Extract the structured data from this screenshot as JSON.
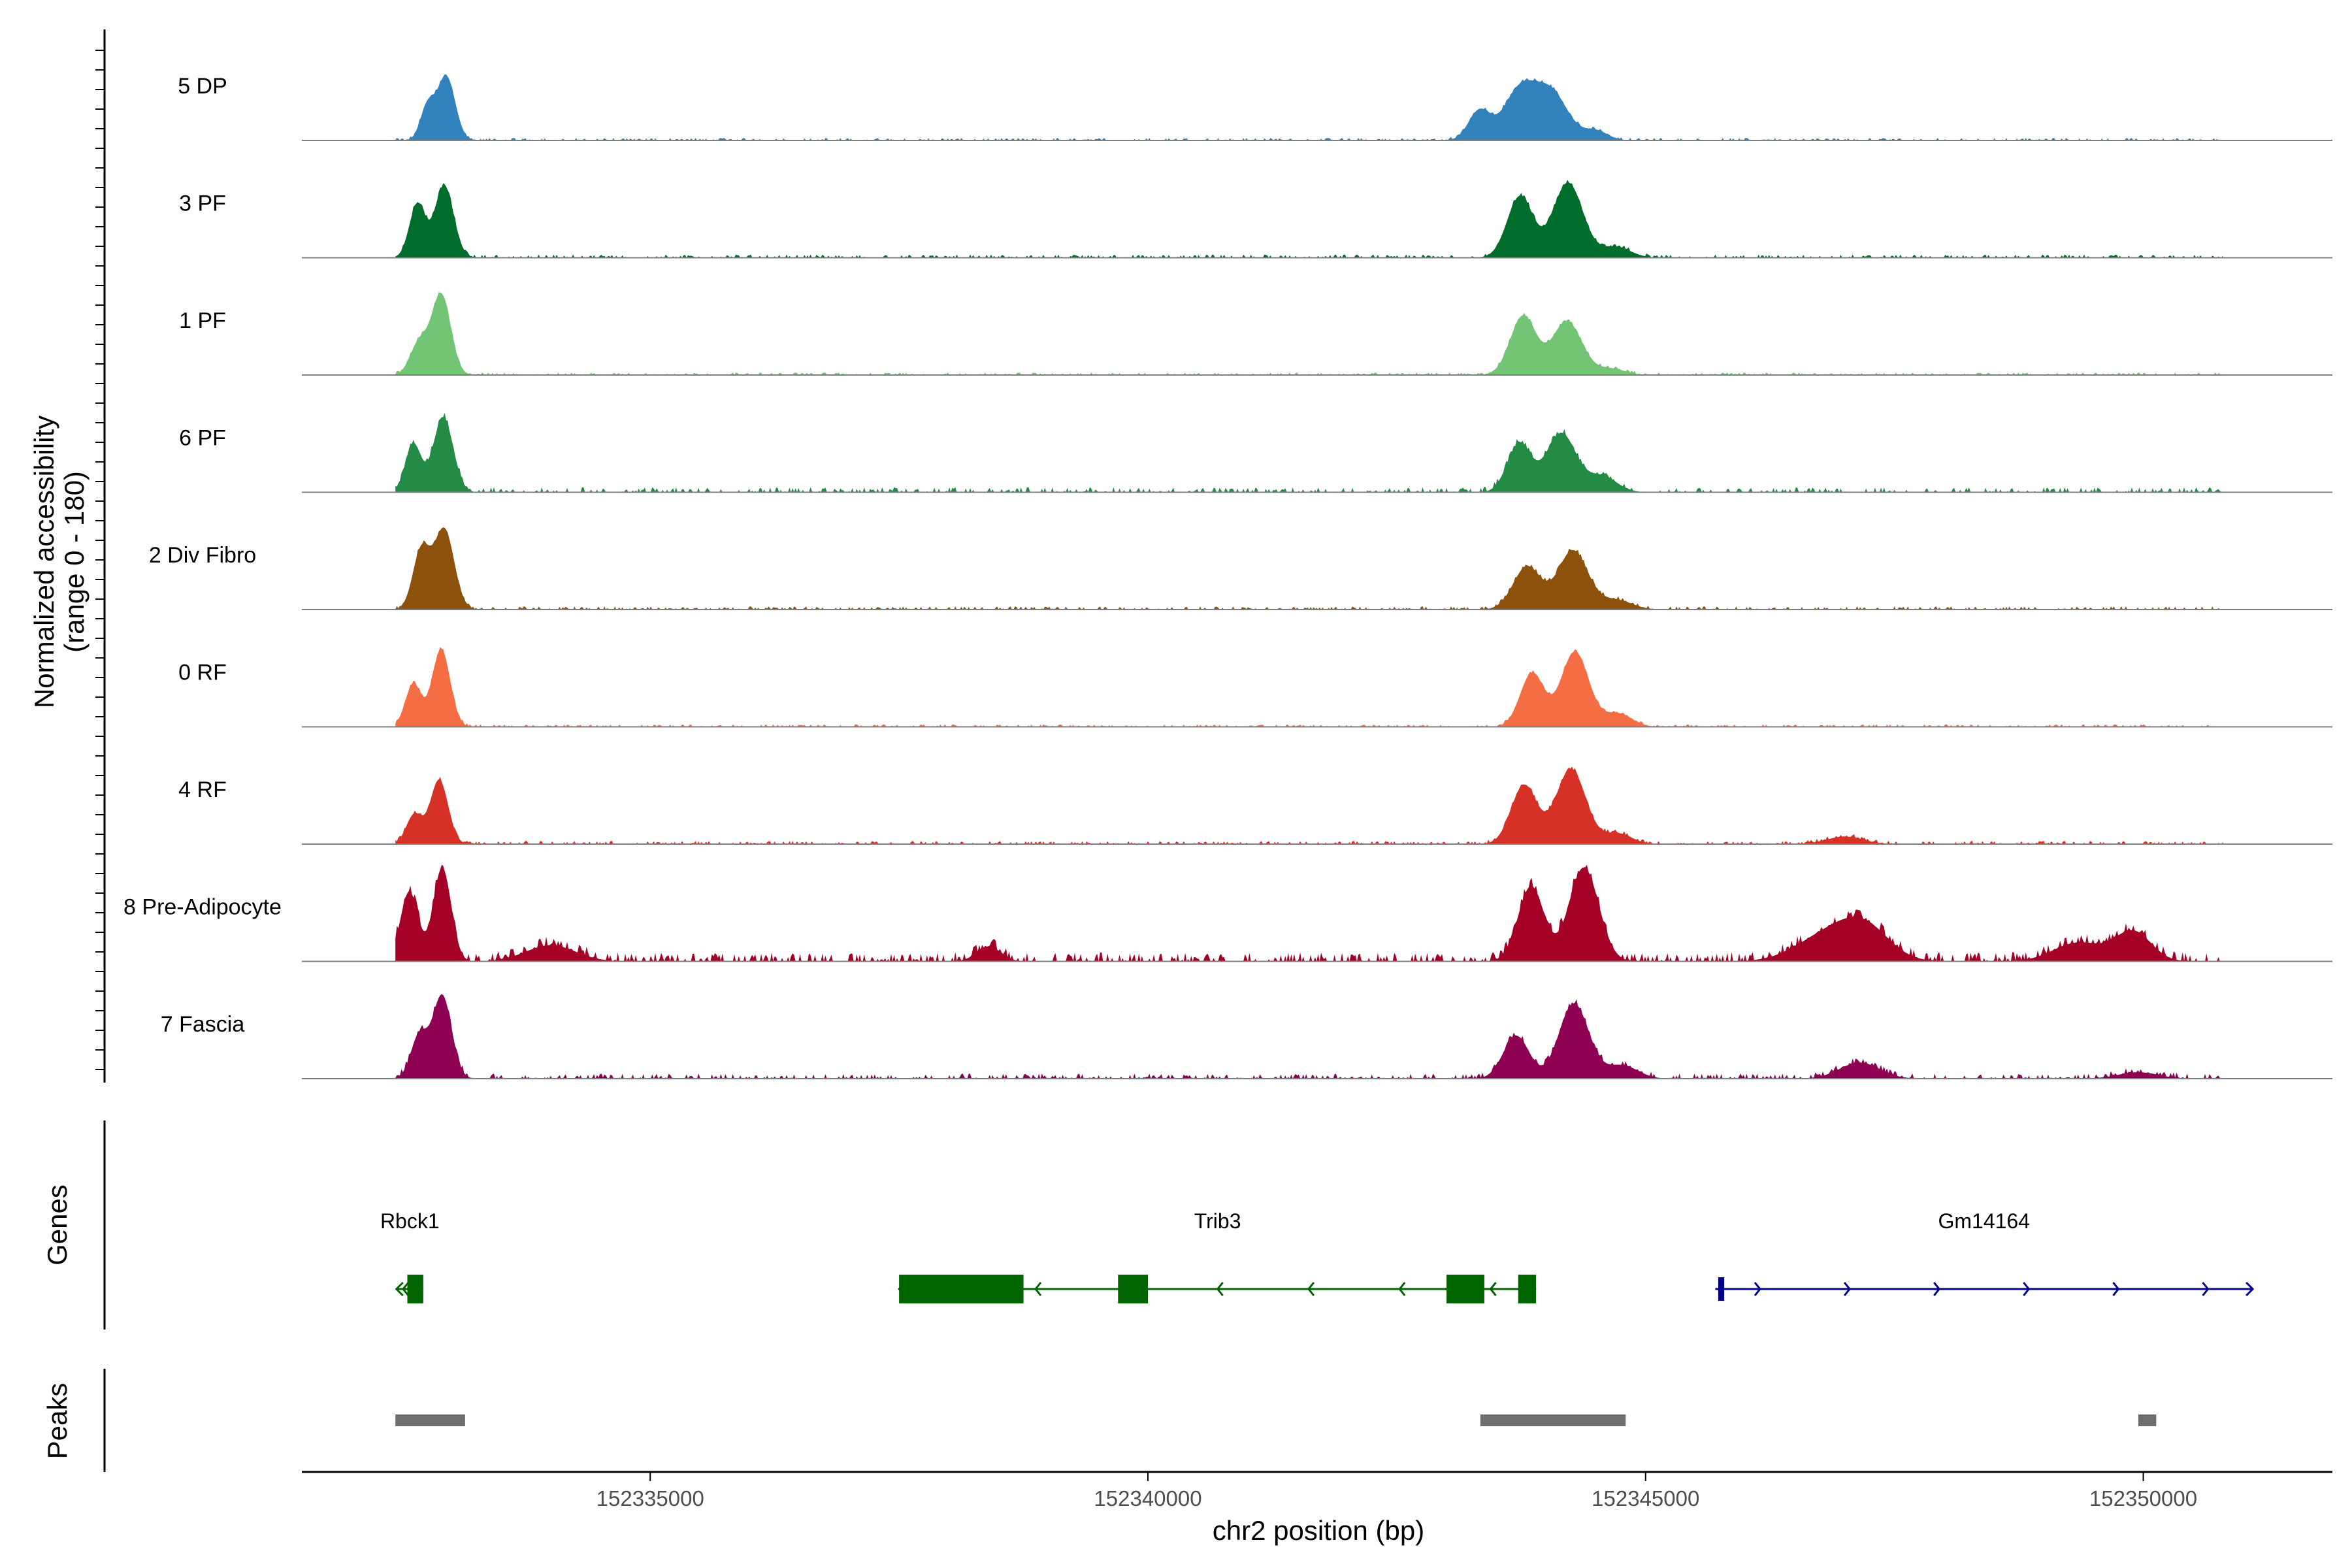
{
  "chart_data": {
    "type": "area",
    "title": "",
    "xlabel": "chr2 position (bp)",
    "ylabel": "Normalized accessibility",
    "ylabel2": "(range 0 - 180)",
    "xlim": [
      152331500,
      152351900
    ],
    "ylim": [
      0,
      180
    ],
    "x_ticks": [
      152335000,
      152340000,
      152345000,
      152350000
    ],
    "x_tick_labels": [
      "152335000",
      "152340000",
      "152345000",
      "152350000"
    ],
    "tracks": [
      {
        "name": "5 DP",
        "color": "#3182bd",
        "peaks": [
          [
            152332760,
            62,
            70
          ],
          [
            152332950,
            120,
            90
          ],
          [
            152343330,
            55,
            110
          ],
          [
            152343730,
            90,
            160
          ],
          [
            152344050,
            88,
            170
          ],
          [
            152344500,
            18,
            120
          ]
        ],
        "noise": 4,
        "span": [
          152332440,
          152350800
        ]
      },
      {
        "name": "3 PF",
        "color": "#006d2c",
        "peaks": [
          [
            152332660,
            100,
            80
          ],
          [
            152332930,
            135,
            95
          ],
          [
            152343740,
            115,
            130
          ],
          [
            152344220,
            140,
            150
          ],
          [
            152344700,
            20,
            150
          ]
        ],
        "noise": 5,
        "span": [
          152332440,
          152350800
        ]
      },
      {
        "name": "1 PF",
        "color": "#74c476",
        "peaks": [
          [
            152332680,
            60,
            90
          ],
          [
            152332900,
            150,
            95
          ],
          [
            152343770,
            110,
            130
          ],
          [
            152344210,
            100,
            150
          ],
          [
            152344650,
            12,
            140
          ]
        ],
        "noise": 4,
        "span": [
          152332440,
          152350800
        ]
      },
      {
        "name": "6 PF",
        "color": "#238b45",
        "peaks": [
          [
            152332620,
            90,
            80
          ],
          [
            152332920,
            140,
            100
          ],
          [
            152343730,
            90,
            120
          ],
          [
            152344150,
            110,
            150
          ],
          [
            152344560,
            30,
            150
          ]
        ],
        "noise": 8,
        "span": [
          152332440,
          152350800
        ]
      },
      {
        "name": "2 Div Fibro",
        "color": "#8c510a",
        "peaks": [
          [
            152332700,
            110,
            85
          ],
          [
            152332930,
            150,
            100
          ],
          [
            152343810,
            80,
            140
          ],
          [
            152344270,
            110,
            150
          ],
          [
            152344700,
            18,
            160
          ]
        ],
        "noise": 5,
        "span": [
          152332440,
          152350800
        ]
      },
      {
        "name": "0 RF",
        "color": "#f46d43",
        "peaks": [
          [
            152332620,
            80,
            80
          ],
          [
            152332900,
            145,
            90
          ],
          [
            152343860,
            100,
            120
          ],
          [
            152344290,
            140,
            140
          ],
          [
            152344720,
            25,
            140
          ]
        ],
        "noise": 4,
        "span": [
          152332440,
          152350800
        ]
      },
      {
        "name": "4 RF",
        "color": "#d73027",
        "peaks": [
          [
            152332630,
            55,
            80
          ],
          [
            152332880,
            120,
            90
          ],
          [
            152343780,
            110,
            130
          ],
          [
            152344250,
            140,
            150
          ],
          [
            152344720,
            20,
            140
          ],
          [
            152347000,
            14,
            180
          ]
        ],
        "noise": 5,
        "span": [
          152332440,
          152350800
        ]
      },
      {
        "name": "8 Pre-Adipocyte",
        "color": "#a50026",
        "peaks": [
          [
            152332580,
            130,
            90
          ],
          [
            152332910,
            175,
            90
          ],
          [
            152334000,
            30,
            250
          ],
          [
            152338400,
            28,
            120
          ],
          [
            152343850,
            140,
            130
          ],
          [
            152344380,
            175,
            150
          ],
          [
            152346800,
            45,
            300
          ],
          [
            152347200,
            60,
            250
          ],
          [
            152349350,
            35,
            250
          ],
          [
            152349900,
            55,
            180
          ]
        ],
        "noise": 14,
        "span": [
          152332440,
          152350800
        ]
      },
      {
        "name": "7 Fascia",
        "color": "#8e0152",
        "peaks": [
          [
            152332680,
            80,
            85
          ],
          [
            152332910,
            155,
            95
          ],
          [
            152343700,
            80,
            130
          ],
          [
            152344280,
            140,
            150
          ],
          [
            152344760,
            25,
            160
          ],
          [
            152347150,
            30,
            200
          ],
          [
            152349950,
            12,
            200
          ]
        ],
        "noise": 8,
        "span": [
          152332440,
          152350800
        ]
      }
    ],
    "genes": [
      {
        "name": "Rbck1",
        "color": "#006400",
        "strand": "-",
        "start": 152332450,
        "end": 152332720,
        "exons": [
          [
            152332560,
            152332720
          ]
        ]
      },
      {
        "name": "Trib3",
        "color": "#006400",
        "strand": "-",
        "start": 152337500,
        "end": 152343900,
        "exons": [
          [
            152337500,
            152338750
          ],
          [
            152339700,
            152340000
          ],
          [
            152343000,
            152343380
          ],
          [
            152343720,
            152343900
          ]
        ]
      },
      {
        "name": "Gm14164",
        "color": "#00008b",
        "strand": "+",
        "start": 152345700,
        "end": 152351100,
        "exons": [
          [
            152345730,
            152345790
          ]
        ]
      }
    ],
    "peaks_track": [
      {
        "start": 152332440,
        "end": 152333140
      },
      {
        "start": 152343340,
        "end": 152344800
      },
      {
        "start": 152349950,
        "end": 152350130
      }
    ],
    "peaks_color": "#6e6e6e",
    "side_labels": {
      "genes": "Genes",
      "peaks": "Peaks"
    }
  }
}
